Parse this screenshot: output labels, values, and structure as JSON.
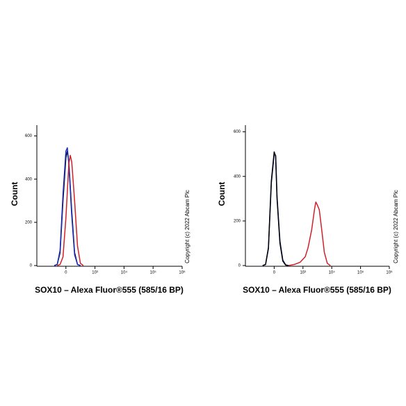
{
  "chart_data": [
    {
      "type": "line",
      "xscale": "biexponential",
      "y_label": "Count",
      "x_label": "SOX10 – Alexa Fluor®555 (585/16 BP)",
      "annotation": "Copyright (c) 2022 Abcam Plc",
      "xlim": [
        -1000,
        1000000
      ],
      "ylim": [
        0,
        650
      ],
      "yticks": [
        0,
        200,
        400,
        600
      ],
      "xticks": [
        0,
        {
          "value": 1000,
          "label": "10³"
        },
        {
          "value": 10000,
          "label": "10⁴"
        },
        {
          "value": 100000,
          "label": "10⁵"
        },
        {
          "value": 1000000,
          "label": "10⁶"
        }
      ],
      "series": [
        {
          "color": "#000000",
          "x": [
            -400,
            -300,
            -200,
            -100,
            0,
            50,
            100,
            200,
            300,
            400,
            500
          ],
          "values": [
            0,
            5,
            60,
            300,
            500,
            530,
            480,
            250,
            60,
            5,
            0
          ]
        },
        {
          "color": "#1f2fbf",
          "x": [
            -400,
            -300,
            -200,
            -100,
            0,
            50,
            100,
            200,
            300,
            400,
            500
          ],
          "values": [
            0,
            5,
            70,
            330,
            530,
            545,
            470,
            230,
            50,
            5,
            0
          ]
        },
        {
          "color": "#d0202a",
          "x": [
            -300,
            -200,
            -100,
            0,
            100,
            150,
            200,
            300,
            400,
            500,
            600
          ],
          "values": [
            0,
            5,
            40,
            220,
            470,
            510,
            480,
            300,
            90,
            10,
            0
          ]
        }
      ]
    },
    {
      "type": "line",
      "xscale": "biexponential",
      "y_label": "Count",
      "x_label": "SOX10 – Alexa Fluor®555 (585/16 BP)",
      "annotation": "Copyright (c) 2022 Abcam Plc",
      "xlim": [
        -1000,
        1000000
      ],
      "ylim": [
        0,
        630
      ],
      "yticks": [
        0,
        200,
        400,
        600
      ],
      "xticks": [
        0,
        {
          "value": 1000,
          "label": "10³"
        },
        {
          "value": 10000,
          "label": "10⁴"
        },
        {
          "value": 100000,
          "label": "10⁵"
        },
        {
          "value": 1000000,
          "label": "10⁶"
        }
      ],
      "series": [
        {
          "color": "#d0202a",
          "x": [
            500,
            700,
            900,
            1200,
            1500,
            2000,
            2500,
            2800,
            3200,
            3700,
            4500,
            5500,
            7000,
            9000
          ],
          "values": [
            0,
            5,
            15,
            40,
            80,
            160,
            250,
            285,
            270,
            250,
            160,
            60,
            10,
            0
          ]
        },
        {
          "color": "#1f2fbf",
          "x": [
            -400,
            -300,
            -200,
            -100,
            0,
            50,
            100,
            200,
            300,
            400,
            500
          ],
          "values": [
            0,
            5,
            75,
            370,
            500,
            495,
            310,
            110,
            25,
            3,
            0
          ]
        },
        {
          "color": "#000000",
          "x": [
            -400,
            -300,
            -200,
            -100,
            0,
            50,
            100,
            200,
            300,
            400,
            500
          ],
          "values": [
            0,
            5,
            80,
            380,
            510,
            490,
            300,
            100,
            20,
            2,
            0
          ]
        }
      ]
    }
  ]
}
